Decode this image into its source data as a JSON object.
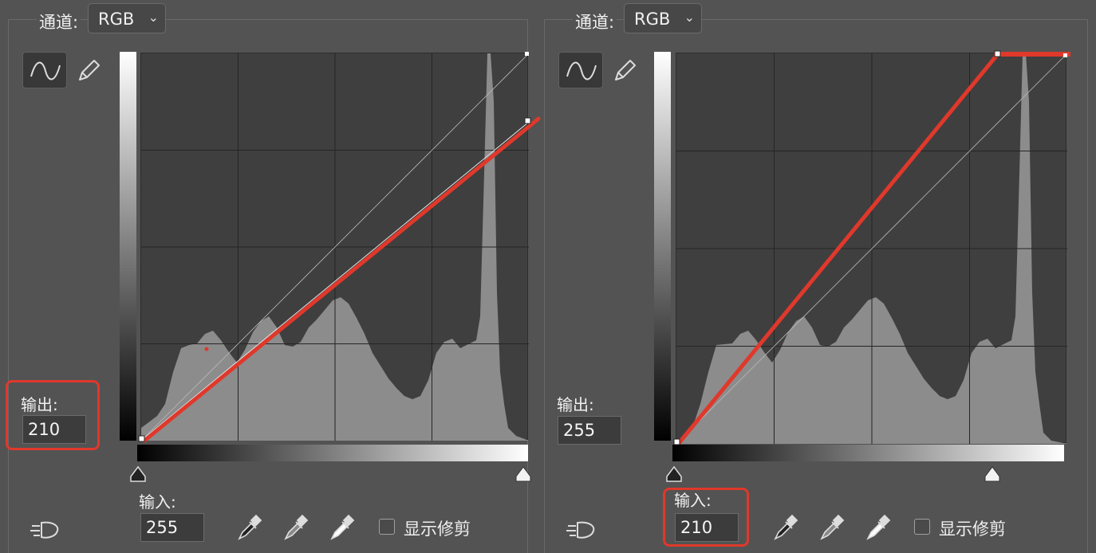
{
  "left_panel": {
    "channel_label": "通道:",
    "channel_value": "RGB",
    "output_label": "输出:",
    "output_value": "210",
    "input_label": "输入:",
    "input_value": "255",
    "show_clipping_label": "显示修剪"
  },
  "right_panel": {
    "channel_label": "通道:",
    "channel_value": "RGB",
    "output_label": "输出:",
    "output_value": "255",
    "input_label": "输入:",
    "input_value": "210",
    "show_clipping_label": "显示修剪"
  },
  "colors": {
    "background": "#535353",
    "graph_background": "#3f3f3f",
    "histogram": "#8c8c8c",
    "curve_highlight": "#e0382b"
  },
  "icons": [
    "curve-tool-icon",
    "pencil-icon",
    "black-point-eyedropper-icon",
    "gray-point-eyedropper-icon",
    "white-point-eyedropper-icon",
    "smooth-icon",
    "chevron-down-icon"
  ]
}
